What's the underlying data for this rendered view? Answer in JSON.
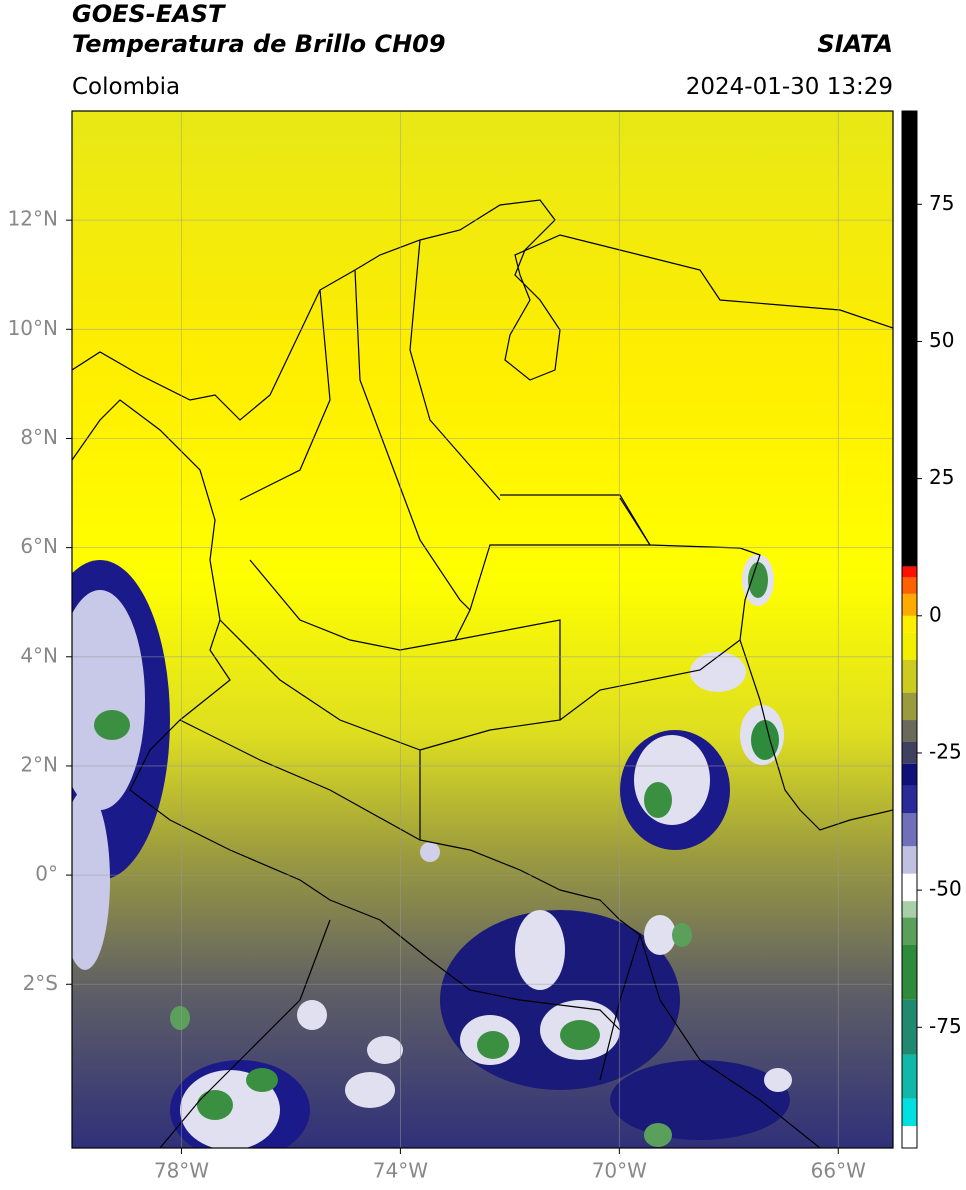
{
  "header": {
    "title": "GOES-EAST",
    "subtitle": "Temperatura de Brillo CH09",
    "region": "Colombia",
    "source": "SIATA",
    "datetime": "2024-01-30 13:29"
  },
  "map": {
    "xlim": [
      -80,
      -65
    ],
    "ylim": [
      -5,
      14
    ],
    "xticks": [
      {
        "value": -78,
        "label": "78°W"
      },
      {
        "value": -74,
        "label": "74°W"
      },
      {
        "value": -70,
        "label": "70°W"
      },
      {
        "value": -66,
        "label": "66°W"
      }
    ],
    "yticks": [
      {
        "value": 12,
        "label": "12°N"
      },
      {
        "value": 10,
        "label": "10°N"
      },
      {
        "value": 8,
        "label": "8°N"
      },
      {
        "value": 6,
        "label": "6°N"
      },
      {
        "value": 4,
        "label": "4°N"
      },
      {
        "value": 2,
        "label": "2°N"
      },
      {
        "value": 0,
        "label": "0°"
      },
      {
        "value": -2,
        "label": "2°S"
      }
    ],
    "grid": true
  },
  "colorbar": {
    "range": [
      -97,
      92
    ],
    "ticks": [
      75,
      50,
      25,
      0,
      -25,
      -50,
      -75
    ],
    "stops": [
      {
        "value": -97,
        "color": "#ffffff"
      },
      {
        "value": -93,
        "color": "#00e0e0"
      },
      {
        "value": -88,
        "color": "#10b8a8"
      },
      {
        "value": -80,
        "color": "#208a70"
      },
      {
        "value": -70,
        "color": "#2e8b3c"
      },
      {
        "value": -60,
        "color": "#5aa05a"
      },
      {
        "value": -55,
        "color": "#a8cfa8"
      },
      {
        "value": -52,
        "color": "#ffffff"
      },
      {
        "value": -47,
        "color": "#c0c0e0"
      },
      {
        "value": -42,
        "color": "#7070b8"
      },
      {
        "value": -36,
        "color": "#2a2a98"
      },
      {
        "value": -31,
        "color": "#10107a"
      },
      {
        "value": -27,
        "color": "#404060"
      },
      {
        "value": -23,
        "color": "#6a6a5a"
      },
      {
        "value": -19,
        "color": "#9a9a40"
      },
      {
        "value": -14,
        "color": "#cccc20"
      },
      {
        "value": -8,
        "color": "#f0f000"
      },
      {
        "value": -3,
        "color": "#ffee00"
      },
      {
        "value": 0,
        "color": "#ffaa00"
      },
      {
        "value": 4,
        "color": "#ff6000"
      },
      {
        "value": 7,
        "color": "#ff1000"
      },
      {
        "value": 9,
        "color": "#000000"
      }
    ]
  }
}
